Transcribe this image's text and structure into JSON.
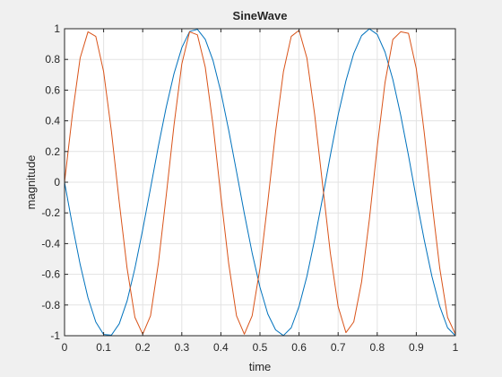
{
  "chart_data": {
    "type": "line",
    "title": "SineWave",
    "xlabel": "time",
    "ylabel": "magnitude",
    "xlim": [
      0,
      1
    ],
    "ylim": [
      -1,
      1
    ],
    "xticks": [
      0,
      0.1,
      0.2,
      0.3,
      0.4,
      0.5,
      0.6,
      0.7,
      0.8,
      0.9,
      1
    ],
    "yticks": [
      -1,
      -0.8,
      -0.6,
      -0.4,
      -0.2,
      0,
      0.2,
      0.4,
      0.6,
      0.8,
      1
    ],
    "xtick_labels": [
      "0",
      "0.1",
      "0.2",
      "0.3",
      "0.4",
      "0.5",
      "0.6",
      "0.7",
      "0.8",
      "0.9",
      "1"
    ],
    "ytick_labels": [
      "-1",
      "-0.8",
      "-0.6",
      "-0.4",
      "-0.2",
      "0",
      "0.2",
      "0.4",
      "0.6",
      "0.8",
      "1"
    ],
    "grid": true,
    "background": "#ffffff",
    "series": [
      {
        "color": "#0072bd",
        "x": [
          0,
          0.02,
          0.04,
          0.06,
          0.08,
          0.1,
          0.12,
          0.14,
          0.16,
          0.18,
          0.2,
          0.22,
          0.24,
          0.26,
          0.28,
          0.3,
          0.32,
          0.34,
          0.36,
          0.38,
          0.4,
          0.42,
          0.44,
          0.46,
          0.48,
          0.5,
          0.52,
          0.54,
          0.56,
          0.58,
          0.6,
          0.62,
          0.64,
          0.66,
          0.68,
          0.7,
          0.72,
          0.74,
          0.76,
          0.78,
          0.8,
          0.82,
          0.84,
          0.86,
          0.88,
          0.9,
          0.92,
          0.94,
          0.96,
          0.98,
          1
        ],
        "y": [
          0,
          -0.279,
          -0.536,
          -0.753,
          -0.911,
          -0.992,
          -0.996,
          -0.922,
          -0.774,
          -0.561,
          -0.309,
          -0.039,
          0.234,
          0.487,
          0.707,
          0.876,
          0.982,
          0.996,
          0.931,
          0.792,
          0.588,
          0.339,
          0.069,
          -0.204,
          -0.461,
          -0.684,
          -0.858,
          -0.962,
          -0.999,
          -0.948,
          -0.809,
          -0.614,
          -0.372,
          -0.106,
          0.174,
          0.438,
          0.661,
          0.839,
          0.955,
          0.999,
          0.963,
          0.848,
          0.669,
          0.438,
          0.174,
          -0.106,
          -0.372,
          -0.614,
          -0.809,
          -0.948,
          -1
        ]
      },
      {
        "color": "#d95319",
        "x": [
          0,
          0.02,
          0.04,
          0.06,
          0.08,
          0.1,
          0.12,
          0.14,
          0.16,
          0.18,
          0.2,
          0.22,
          0.24,
          0.26,
          0.28,
          0.3,
          0.32,
          0.34,
          0.36,
          0.38,
          0.4,
          0.42,
          0.44,
          0.46,
          0.48,
          0.5,
          0.52,
          0.54,
          0.56,
          0.58,
          0.6,
          0.62,
          0.64,
          0.66,
          0.68,
          0.7,
          0.72,
          0.74,
          0.76,
          0.78,
          0.8,
          0.82,
          0.84,
          0.86,
          0.88,
          0.9,
          0.92,
          0.94,
          0.96,
          0.98,
          1
        ],
        "y": [
          0,
          0.44,
          0.81,
          0.98,
          0.95,
          0.72,
          0.33,
          -0.13,
          -0.56,
          -0.88,
          -0.99,
          -0.87,
          -0.53,
          -0.09,
          0.37,
          0.77,
          0.98,
          0.96,
          0.75,
          0.37,
          -0.09,
          -0.53,
          -0.87,
          -0.99,
          -0.87,
          -0.56,
          -0.13,
          0.33,
          0.72,
          0.95,
          0.99,
          0.81,
          0.44,
          -0.01,
          -0.46,
          -0.81,
          -0.98,
          -0.91,
          -0.65,
          -0.24,
          0.23,
          0.65,
          0.93,
          0.98,
          0.97,
          0.74,
          0.33,
          -0.13,
          -0.56,
          -0.88,
          -0.99
        ]
      }
    ]
  }
}
